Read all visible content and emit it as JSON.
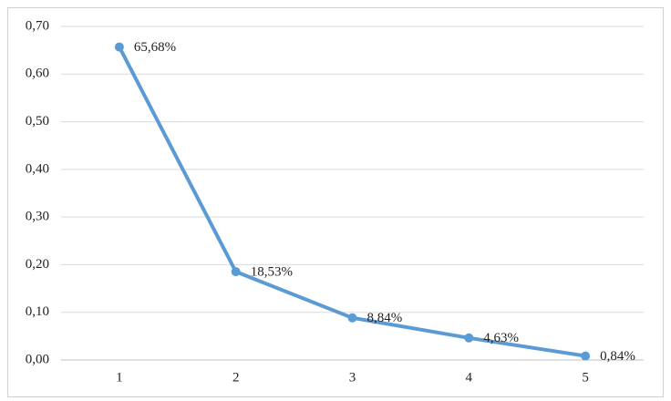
{
  "chart_data": {
    "type": "line",
    "categories": [
      "1",
      "2",
      "3",
      "4",
      "5"
    ],
    "values": [
      0.6568,
      0.1853,
      0.0884,
      0.0463,
      0.0084
    ],
    "value_labels": [
      "65,68%",
      "18,53%",
      "8,84%",
      "4,63%",
      "0,84%"
    ],
    "color": "#5b9bd5",
    "ylim": [
      0,
      0.7
    ],
    "yticks": [
      {
        "value": 0,
        "label": "0,00"
      },
      {
        "value": 0.1,
        "label": "0,10"
      },
      {
        "value": 0.2,
        "label": "0,20"
      },
      {
        "value": 0.3,
        "label": "0,30"
      },
      {
        "value": 0.4,
        "label": "0,40"
      },
      {
        "value": 0.5,
        "label": "0,50"
      },
      {
        "value": 0.6,
        "label": "0,60"
      },
      {
        "value": 0.7,
        "label": "0,70"
      }
    ],
    "grid": true
  }
}
